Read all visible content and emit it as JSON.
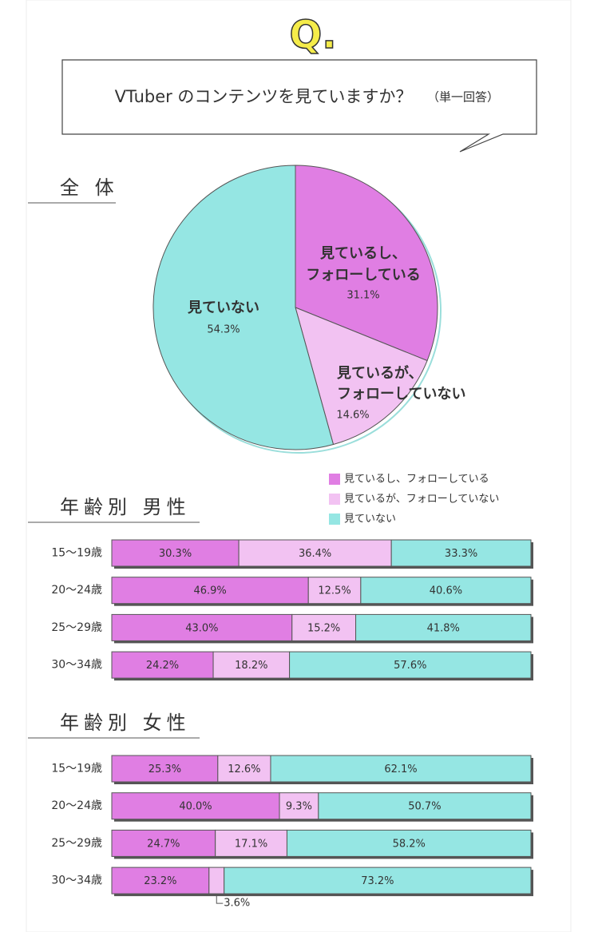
{
  "header": {
    "badge": "Q.",
    "title": "VTuber のコンテンツを見ていますか？",
    "note": "（単一回答）"
  },
  "chart_data": [
    {
      "type": "pie",
      "heading": "全 体",
      "labels": [
        [
          "見ているし、",
          "フォローしている"
        ],
        [
          "見ているが、",
          "フォローしていない"
        ],
        [
          "見ていない"
        ]
      ],
      "values": [
        31.1,
        14.6,
        54.3
      ],
      "value_labels": [
        "31.1%",
        "14.6%",
        "54.3%"
      ],
      "colors": [
        "#e07ee3",
        "#f2c2f2",
        "#95e6e3"
      ]
    },
    {
      "type": "stacked-bar",
      "heading": "年齢別 男性",
      "categories": [
        "15〜19歳",
        "20〜24歳",
        "25〜29歳",
        "30〜34歳"
      ],
      "series": [
        {
          "name": "見ているし、フォローしている",
          "color": "#e07ee3",
          "values": [
            30.3,
            46.9,
            43.0,
            24.2
          ],
          "value_labels": [
            "30.3%",
            "46.9%",
            "43.0%",
            "24.2%"
          ]
        },
        {
          "name": "見ているが、フォローしていない",
          "color": "#f2c2f2",
          "values": [
            36.4,
            12.5,
            15.2,
            18.2
          ],
          "value_labels": [
            "36.4%",
            "12.5%",
            "15.2%",
            "18.2%"
          ]
        },
        {
          "name": "見ていない",
          "color": "#95e6e3",
          "values": [
            33.3,
            40.6,
            41.8,
            57.6
          ],
          "value_labels": [
            "33.3%",
            "40.6%",
            "41.8%",
            "57.6%"
          ]
        }
      ]
    },
    {
      "type": "stacked-bar",
      "heading": "年齢別 女性",
      "categories": [
        "15〜19歳",
        "20〜24歳",
        "25〜29歳",
        "30〜34歳"
      ],
      "series": [
        {
          "color": "#e07ee3",
          "values": [
            25.3,
            40.0,
            24.7,
            23.2
          ],
          "value_labels": [
            "25.3%",
            "40.0%",
            "24.7%",
            "23.2%"
          ]
        },
        {
          "color": "#f2c2f2",
          "values": [
            12.6,
            9.3,
            17.1,
            3.6
          ],
          "value_labels": [
            "12.6%",
            "9.3%",
            "17.1%",
            "3.6%"
          ]
        },
        {
          "color": "#95e6e3",
          "values": [
            62.1,
            50.7,
            58.2,
            73.2
          ],
          "value_labels": [
            "62.1%",
            "50.7%",
            "58.2%",
            "73.2%"
          ]
        }
      ]
    }
  ]
}
